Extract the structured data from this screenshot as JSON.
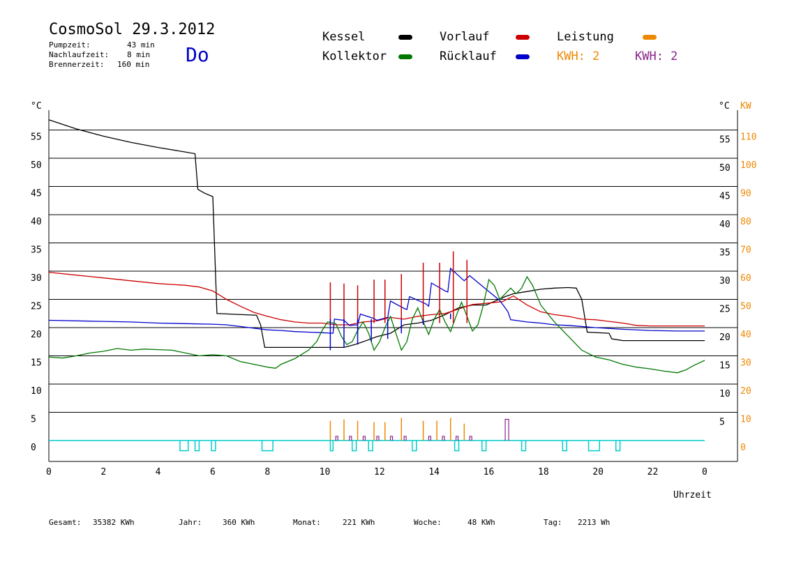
{
  "header": {
    "title": "CosmoSol 29.3.2012",
    "weekday": "Do",
    "info": [
      {
        "label": "Pumpzeit:",
        "value": "43 min"
      },
      {
        "label": "Nachlaufzeit:",
        "value": "8 min"
      },
      {
        "label": "Brennerzeit:",
        "value": "160 min"
      }
    ]
  },
  "legend": {
    "kessel": "Kessel",
    "kollektor": "Kollektor",
    "vorlauf": "Vorlauf",
    "ruecklauf": "Rücklauf",
    "leistung": "Leistung",
    "kwh1": "KWH: 2",
    "kwh2": "KWH: 2"
  },
  "colors": {
    "kessel": "#000000",
    "kollektor": "#007700",
    "vorlauf": "#cc0000",
    "ruecklauf": "#0000cc",
    "leistung": "#ee8800",
    "kwh2": "#882288",
    "pump": "#00cccc"
  },
  "footer": [
    {
      "label": "Gesamt:",
      "value": "35382 KWh"
    },
    {
      "label": "Jahr:",
      "value": "360 KWh"
    },
    {
      "label": "Monat:",
      "value": "221 KWh"
    },
    {
      "label": "Woche:",
      "value": "48 KWh"
    },
    {
      "label": "Tag:",
      "value": "2213 Wh"
    }
  ],
  "chart_data": {
    "type": "line",
    "xlabel": "Uhrzeit",
    "ylabel_left": "°C",
    "ylabel_right": [
      "°C",
      "KW"
    ],
    "x_ticks": [
      "0",
      "2",
      "4",
      "6",
      "8",
      "10",
      "12",
      "14",
      "16",
      "18",
      "20",
      "22",
      "0"
    ],
    "y_ticks_left": [
      0,
      5,
      10,
      15,
      20,
      25,
      30,
      35,
      40,
      45,
      50,
      55
    ],
    "y_ticks_right_c": [
      5,
      10,
      15,
      20,
      25,
      30,
      35,
      40,
      45,
      50,
      55
    ],
    "y_ticks_right_kw": [
      0,
      10,
      20,
      30,
      40,
      50,
      60,
      70,
      80,
      90,
      100,
      110
    ],
    "xlim": [
      0,
      24
    ],
    "ylim": [
      -3.5,
      58
    ],
    "grid": "horizontal",
    "series": [
      {
        "name": "Kessel",
        "color_key": "kessel",
        "points": [
          [
            0,
            56.8
          ],
          [
            1,
            55.2
          ],
          [
            2,
            53.9
          ],
          [
            3,
            52.8
          ],
          [
            4,
            51.9
          ],
          [
            5,
            51.1
          ],
          [
            5.35,
            50.8
          ],
          [
            5.45,
            44.5
          ],
          [
            5.7,
            43.8
          ],
          [
            6.0,
            43.2
          ],
          [
            6.15,
            22.5
          ],
          [
            7.6,
            22.2
          ],
          [
            7.75,
            20.5
          ],
          [
            7.9,
            16.5
          ],
          [
            9,
            16.5
          ],
          [
            10,
            16.5
          ],
          [
            10.8,
            16.5
          ],
          [
            11.2,
            17
          ],
          [
            11.5,
            17.5
          ],
          [
            12.0,
            18.4
          ],
          [
            12.5,
            19.0
          ],
          [
            13.0,
            20.5
          ],
          [
            13.5,
            20.8
          ],
          [
            14.0,
            21.3
          ],
          [
            14.5,
            22.3
          ],
          [
            15.0,
            23.5
          ],
          [
            15.5,
            24.0
          ],
          [
            16.0,
            24.0
          ],
          [
            16.7,
            25.5
          ],
          [
            17.0,
            26.0
          ],
          [
            17.5,
            26.4
          ],
          [
            18.0,
            26.8
          ],
          [
            18.5,
            27.0
          ],
          [
            19.0,
            27.1
          ],
          [
            19.3,
            27.0
          ],
          [
            19.5,
            25.0
          ],
          [
            19.7,
            19.2
          ],
          [
            20.5,
            19.0
          ],
          [
            20.6,
            18.0
          ],
          [
            21,
            17.7
          ],
          [
            22,
            17.7
          ],
          [
            23,
            17.7
          ],
          [
            24,
            17.7
          ]
        ]
      },
      {
        "name": "Vorlauf",
        "color_key": "vorlauf",
        "points": [
          [
            0,
            29.8
          ],
          [
            1,
            29.3
          ],
          [
            2,
            28.8
          ],
          [
            3,
            28.3
          ],
          [
            4,
            27.8
          ],
          [
            5,
            27.5
          ],
          [
            5.5,
            27.2
          ],
          [
            6.0,
            26.5
          ],
          [
            6.5,
            25.0
          ],
          [
            7.0,
            23.8
          ],
          [
            7.5,
            22.7
          ],
          [
            8,
            22.0
          ],
          [
            8.5,
            21.4
          ],
          [
            9,
            21.0
          ],
          [
            9.5,
            20.8
          ],
          [
            10,
            20.8
          ],
          [
            10.5,
            20.5
          ],
          [
            11.0,
            20.5
          ],
          [
            11.5,
            21.0
          ],
          [
            12.0,
            21.2
          ],
          [
            12.5,
            21.8
          ],
          [
            13.0,
            21.5
          ],
          [
            13.5,
            22.0
          ],
          [
            14.0,
            22.3
          ],
          [
            14.5,
            22.5
          ],
          [
            15.0,
            23.3
          ],
          [
            15.5,
            24.1
          ],
          [
            16.0,
            24.3
          ],
          [
            16.6,
            24.6
          ],
          [
            17.0,
            25.6
          ],
          [
            17.5,
            24.0
          ],
          [
            18,
            22.8
          ],
          [
            18.5,
            22.3
          ],
          [
            19,
            22.0
          ],
          [
            19.5,
            21.5
          ],
          [
            20,
            21.4
          ],
          [
            20.5,
            21.1
          ],
          [
            21,
            20.8
          ],
          [
            21.5,
            20.4
          ],
          [
            22,
            20.3
          ],
          [
            23,
            20.3
          ],
          [
            24,
            20.3
          ]
        ]
      },
      {
        "name": "Rücklauf",
        "color_key": "ruecklauf",
        "points": [
          [
            0,
            21.3
          ],
          [
            1,
            21.2
          ],
          [
            2,
            21.1
          ],
          [
            3,
            21.0
          ],
          [
            4,
            20.8
          ],
          [
            5,
            20.7
          ],
          [
            6,
            20.6
          ],
          [
            6.5,
            20.5
          ],
          [
            7,
            20.2
          ],
          [
            7.5,
            19.9
          ],
          [
            8,
            19.6
          ],
          [
            8.5,
            19.5
          ],
          [
            9,
            19.3
          ],
          [
            9.5,
            19.2
          ],
          [
            10,
            19.1
          ],
          [
            10.4,
            19.0
          ],
          [
            10.45,
            21.5
          ],
          [
            10.8,
            21.3
          ],
          [
            11.0,
            20.4
          ],
          [
            11.3,
            20.5
          ],
          [
            11.4,
            22.4
          ],
          [
            11.9,
            21.6
          ],
          [
            12.0,
            21.3
          ],
          [
            12.4,
            21.8
          ],
          [
            12.5,
            24.7
          ],
          [
            13.0,
            23.4
          ],
          [
            13.1,
            23.2
          ],
          [
            13.2,
            25.5
          ],
          [
            13.8,
            24.2
          ],
          [
            13.9,
            23.8
          ],
          [
            14.0,
            27.9
          ],
          [
            14.5,
            26.5
          ],
          [
            14.6,
            26.3
          ],
          [
            14.7,
            30.5
          ],
          [
            15.2,
            28.3
          ],
          [
            15.4,
            29.2
          ],
          [
            15.9,
            27.2
          ],
          [
            16.5,
            24.8
          ],
          [
            16.8,
            22.8
          ],
          [
            16.9,
            21.4
          ],
          [
            17.5,
            21.0
          ],
          [
            18,
            20.8
          ],
          [
            18.5,
            20.5
          ],
          [
            19,
            20.4
          ],
          [
            20,
            20.0
          ],
          [
            21,
            19.7
          ],
          [
            22,
            19.5
          ],
          [
            23,
            19.4
          ],
          [
            24,
            19.4
          ]
        ]
      },
      {
        "name": "Kollektor",
        "color_key": "kollektor",
        "points": [
          [
            0,
            14.8
          ],
          [
            0.5,
            14.6
          ],
          [
            1,
            15.0
          ],
          [
            1.5,
            15.5
          ],
          [
            2,
            15.8
          ],
          [
            2.5,
            16.3
          ],
          [
            3,
            16.0
          ],
          [
            3.5,
            16.2
          ],
          [
            4,
            16.1
          ],
          [
            4.5,
            16.0
          ],
          [
            5,
            15.5
          ],
          [
            5.5,
            15.0
          ],
          [
            6,
            15.2
          ],
          [
            6.5,
            15.0
          ],
          [
            7,
            14.0
          ],
          [
            7.5,
            13.5
          ],
          [
            8,
            13.0
          ],
          [
            8.3,
            12.8
          ],
          [
            8.5,
            13.5
          ],
          [
            9,
            14.5
          ],
          [
            9.5,
            16.0
          ],
          [
            9.8,
            17.5
          ],
          [
            10,
            19.5
          ],
          [
            10.2,
            21.0
          ],
          [
            10.5,
            20.7
          ],
          [
            10.7,
            18.5
          ],
          [
            10.9,
            17.0
          ],
          [
            11.1,
            17.5
          ],
          [
            11.3,
            19.5
          ],
          [
            11.5,
            21.0
          ],
          [
            11.7,
            19.0
          ],
          [
            11.9,
            16.0
          ],
          [
            12.1,
            17.5
          ],
          [
            12.3,
            20.0
          ],
          [
            12.5,
            22.0
          ],
          [
            12.7,
            19.0
          ],
          [
            12.9,
            16.0
          ],
          [
            13.1,
            17.5
          ],
          [
            13.3,
            21.5
          ],
          [
            13.5,
            23.5
          ],
          [
            13.7,
            21.0
          ],
          [
            13.9,
            18.8
          ],
          [
            14.1,
            21.5
          ],
          [
            14.3,
            23.2
          ],
          [
            14.5,
            21.0
          ],
          [
            14.7,
            19.3
          ],
          [
            14.9,
            22.0
          ],
          [
            15.1,
            24.5
          ],
          [
            15.3,
            22.0
          ],
          [
            15.5,
            19.4
          ],
          [
            15.7,
            20.5
          ],
          [
            15.9,
            24.0
          ],
          [
            16.1,
            28.5
          ],
          [
            16.3,
            27.5
          ],
          [
            16.5,
            25.0
          ],
          [
            16.7,
            26.0
          ],
          [
            16.9,
            27.0
          ],
          [
            17.1,
            26.0
          ],
          [
            17.3,
            27.0
          ],
          [
            17.5,
            29.0
          ],
          [
            17.7,
            27.5
          ],
          [
            18,
            24.0
          ],
          [
            18.5,
            21.0
          ],
          [
            19,
            18.5
          ],
          [
            19.5,
            16.0
          ],
          [
            20,
            14.8
          ],
          [
            20.5,
            14.3
          ],
          [
            21,
            13.5
          ],
          [
            21.5,
            13.0
          ],
          [
            22,
            12.7
          ],
          [
            22.5,
            12.3
          ],
          [
            23,
            12.0
          ],
          [
            23.3,
            12.5
          ],
          [
            23.6,
            13.3
          ],
          [
            24,
            14.2
          ]
        ]
      }
    ],
    "vorlauf_peaks": [
      [
        10.3,
        28.0
      ],
      [
        10.8,
        27.8
      ],
      [
        11.3,
        27.5
      ],
      [
        11.9,
        28.5
      ],
      [
        12.3,
        28.5
      ],
      [
        12.9,
        29.5
      ],
      [
        13.7,
        31.5
      ],
      [
        14.3,
        31.5
      ],
      [
        14.8,
        33.5
      ],
      [
        15.3,
        32.0
      ]
    ],
    "ruecklauf_spikes": [
      [
        10.3,
        16.0
      ],
      [
        10.8,
        16.5
      ],
      [
        11.3,
        17.0
      ],
      [
        11.8,
        17.5
      ],
      [
        12.4,
        18.0
      ],
      [
        12.9,
        19.0
      ],
      [
        13.7,
        20.5
      ],
      [
        14.2,
        21.5
      ],
      [
        14.7,
        22.5
      ]
    ],
    "leistung_kw": [
      [
        10.3,
        7.0
      ],
      [
        10.8,
        7.5
      ],
      [
        11.3,
        7.0
      ],
      [
        11.9,
        6.5
      ],
      [
        12.3,
        6.5
      ],
      [
        12.9,
        8.0
      ],
      [
        13.7,
        7.0
      ],
      [
        14.2,
        7.0
      ],
      [
        14.7,
        8.0
      ],
      [
        15.2,
        6.0
      ]
    ],
    "kwh2_kw": [
      [
        10.5,
        1.5
      ],
      [
        11.0,
        1.5
      ],
      [
        11.5,
        1.5
      ],
      [
        12.0,
        1.5
      ],
      [
        12.5,
        1.5
      ],
      [
        13.0,
        1.5
      ],
      [
        13.9,
        1.5
      ],
      [
        14.4,
        1.5
      ],
      [
        14.9,
        1.5
      ],
      [
        15.4,
        1.5
      ],
      [
        16.7,
        7.5
      ]
    ],
    "pump_on": [
      [
        4.8,
        5.1
      ],
      [
        5.35,
        5.5
      ],
      [
        5.95,
        6.1
      ],
      [
        7.8,
        8.2
      ],
      [
        10.3,
        10.4
      ],
      [
        11.1,
        11.25
      ],
      [
        11.7,
        11.85
      ],
      [
        13.3,
        13.45
      ],
      [
        14.85,
        15.0
      ],
      [
        15.85,
        16.0
      ],
      [
        17.3,
        17.45
      ],
      [
        18.8,
        18.95
      ],
      [
        19.75,
        20.15
      ],
      [
        20.75,
        20.9
      ]
    ]
  }
}
